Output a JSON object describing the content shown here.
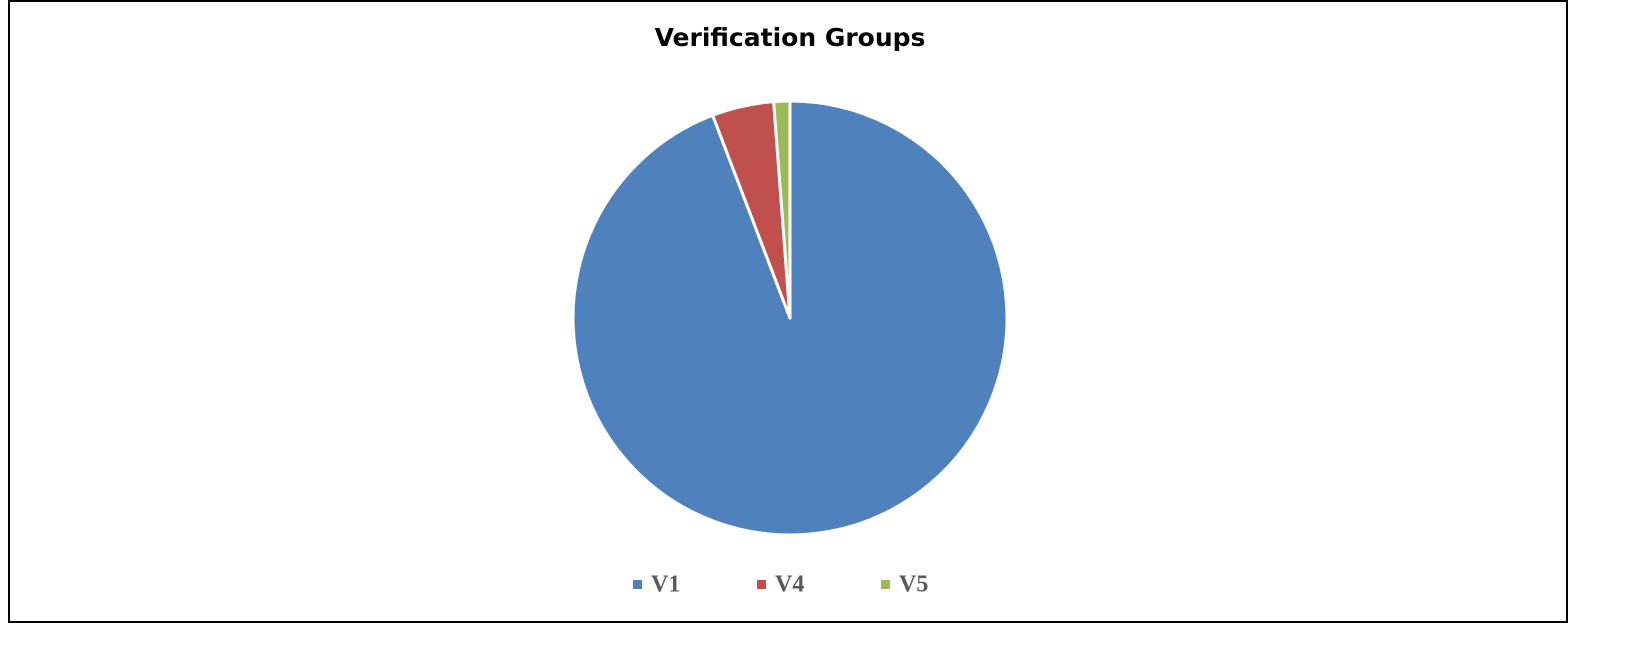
{
  "chart_data": {
    "type": "pie",
    "title": "Verification Groups",
    "categories": [
      "V1",
      "V4",
      "V5"
    ],
    "values": [
      94.2,
      4.6,
      1.2
    ],
    "colors": [
      "#4f81bd",
      "#c0504d",
      "#9bbb59"
    ],
    "legend": "bottom"
  }
}
